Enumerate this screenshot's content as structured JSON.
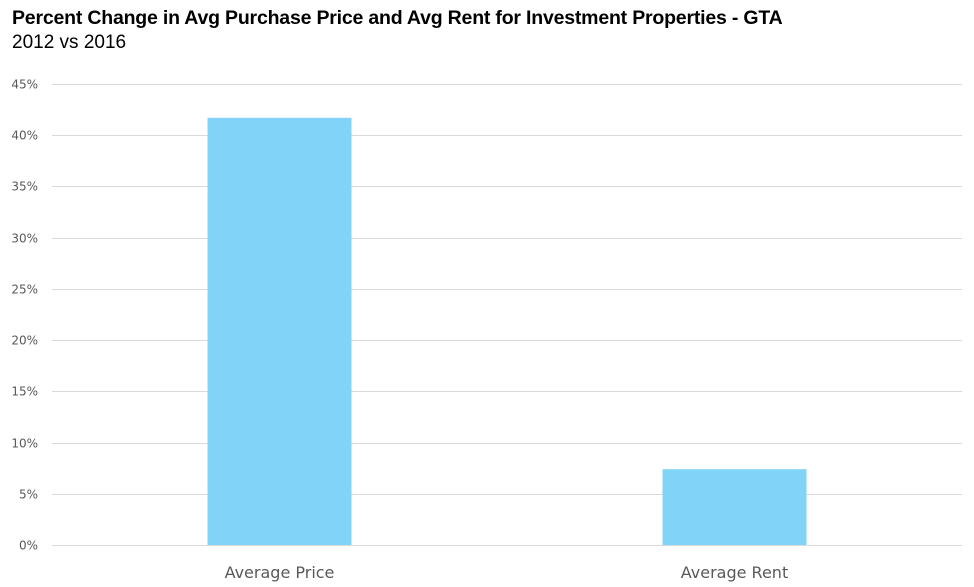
{
  "chart_data": {
    "type": "bar",
    "title": "Percent Change in Avg Purchase Price and Avg Rent for Investment Properties - GTA",
    "subtitle": "2012 vs 2016",
    "categories": [
      "Average Price",
      "Average Rent"
    ],
    "values": [
      41.7,
      7.4
    ],
    "ylim": [
      0,
      45
    ],
    "yticks": [
      "0%",
      "5%",
      "10%",
      "15%",
      "20%",
      "25%",
      "30%",
      "35%",
      "40%",
      "45%"
    ],
    "grid": true,
    "legend": "none",
    "bar_color": "#81D3F8",
    "grid_color": "#D9D9D9",
    "axis_label_color": "#595959"
  }
}
